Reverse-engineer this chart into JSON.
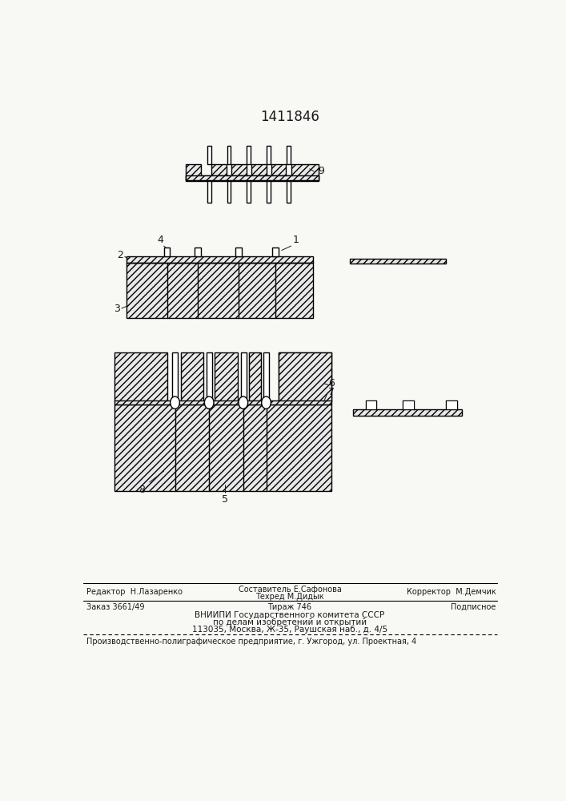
{
  "title": "1411846",
  "bg_color": "#f8f8f5",
  "line_color": "#1a1a1a",
  "footer": {
    "line1_left": "Редактор  Н.Лазаренко",
    "line1_center1": "Составитель Е.Сафонова",
    "line1_center2": "Техред М.Дидык",
    "line1_right": "Корректор  М.Демчик",
    "line2_left": "Заказ 3661/49",
    "line2_center": "Тираж 746",
    "line2_right": "Подписное",
    "line3": "ВНИИПИ Государственного комитета СССР",
    "line4": "по делам изобретений и открытий",
    "line5": "113035, Москва, Ж-35, Раушская наб., д. 4/5",
    "line6": "Производственно-полиграфическое предприятие, г. Ужгород, ул. Проектная, 4"
  }
}
